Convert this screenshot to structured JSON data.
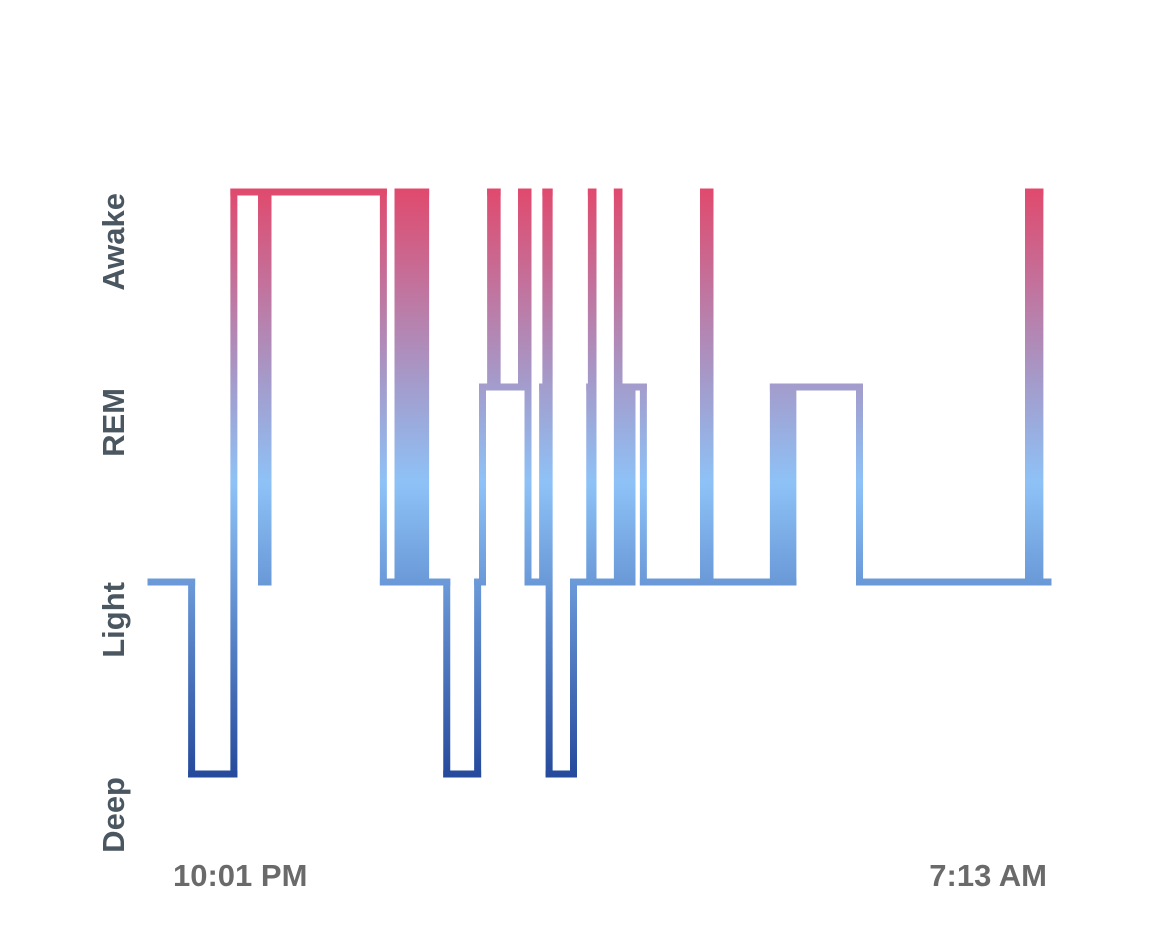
{
  "chart_data": {
    "type": "line",
    "line_style": "step",
    "y_categories": [
      "Deep",
      "Light",
      "REM",
      "Awake"
    ],
    "x_labels": {
      "start": "10:01 PM",
      "end": "7:13 AM"
    },
    "x_range": [
      0,
      552
    ],
    "x_unit": "minutes",
    "colors": {
      "awake": "#e04a6e",
      "rem": "#a39ccc",
      "light": "#8ec2f7",
      "deep": "#264a9c"
    },
    "segments": [
      {
        "t_start": 0,
        "t_end": 25,
        "stage": "Light"
      },
      {
        "t_start": 25,
        "t_end": 51,
        "stage": "Deep"
      },
      {
        "t_start": 51,
        "t_end": 68,
        "stage": "Awake"
      },
      {
        "t_start": 68,
        "t_end": 72,
        "stage": "Light"
      },
      {
        "t_start": 72,
        "t_end": 143,
        "stage": "Awake"
      },
      {
        "t_start": 143,
        "t_end": 152,
        "stage": "Light"
      },
      {
        "t_start": 152,
        "t_end": 153,
        "stage": "Awake"
      },
      {
        "t_start": 153,
        "t_end": 154,
        "stage": "Light"
      },
      {
        "t_start": 154,
        "t_end": 155,
        "stage": "Awake"
      },
      {
        "t_start": 155,
        "t_end": 156,
        "stage": "Light"
      },
      {
        "t_start": 156,
        "t_end": 157,
        "stage": "Awake"
      },
      {
        "t_start": 157,
        "t_end": 158,
        "stage": "Light"
      },
      {
        "t_start": 158,
        "t_end": 159,
        "stage": "Awake"
      },
      {
        "t_start": 159,
        "t_end": 160,
        "stage": "Light"
      },
      {
        "t_start": 160,
        "t_end": 161,
        "stage": "Awake"
      },
      {
        "t_start": 161,
        "t_end": 162,
        "stage": "Light"
      },
      {
        "t_start": 162,
        "t_end": 163,
        "stage": "Awake"
      },
      {
        "t_start": 163,
        "t_end": 164,
        "stage": "Light"
      },
      {
        "t_start": 164,
        "t_end": 165,
        "stage": "Awake"
      },
      {
        "t_start": 165,
        "t_end": 166,
        "stage": "Light"
      },
      {
        "t_start": 166,
        "t_end": 167,
        "stage": "Awake"
      },
      {
        "t_start": 167,
        "t_end": 168,
        "stage": "Light"
      },
      {
        "t_start": 168,
        "t_end": 169,
        "stage": "Awake"
      },
      {
        "t_start": 169,
        "t_end": 182,
        "stage": "Light"
      },
      {
        "t_start": 182,
        "t_end": 201,
        "stage": "Deep"
      },
      {
        "t_start": 201,
        "t_end": 204,
        "stage": "Light"
      },
      {
        "t_start": 204,
        "t_end": 209,
        "stage": "REM"
      },
      {
        "t_start": 209,
        "t_end": 213,
        "stage": "Awake"
      },
      {
        "t_start": 213,
        "t_end": 228,
        "stage": "REM"
      },
      {
        "t_start": 228,
        "t_end": 232,
        "stage": "Awake"
      },
      {
        "t_start": 232,
        "t_end": 241,
        "stage": "Light"
      },
      {
        "t_start": 241,
        "t_end": 243,
        "stage": "REM"
      },
      {
        "t_start": 243,
        "t_end": 245,
        "stage": "Awake"
      },
      {
        "t_start": 245,
        "t_end": 260,
        "stage": "Deep"
      },
      {
        "t_start": 260,
        "t_end": 270,
        "stage": "Light"
      },
      {
        "t_start": 270,
        "t_end": 271,
        "stage": "REM"
      },
      {
        "t_start": 271,
        "t_end": 272,
        "stage": "Awake"
      },
      {
        "t_start": 272,
        "t_end": 287,
        "stage": "Light"
      },
      {
        "t_start": 287,
        "t_end": 288,
        "stage": "Awake"
      },
      {
        "t_start": 288,
        "t_end": 289,
        "stage": "Light"
      },
      {
        "t_start": 289,
        "t_end": 290,
        "stage": "REM"
      },
      {
        "t_start": 290,
        "t_end": 291,
        "stage": "Light"
      },
      {
        "t_start": 291,
        "t_end": 292,
        "stage": "REM"
      },
      {
        "t_start": 292,
        "t_end": 296,
        "stage": "Light"
      },
      {
        "t_start": 296,
        "t_end": 303,
        "stage": "REM"
      },
      {
        "t_start": 303,
        "t_end": 340,
        "stage": "Light"
      },
      {
        "t_start": 340,
        "t_end": 344,
        "stage": "Awake"
      },
      {
        "t_start": 344,
        "t_end": 383,
        "stage": "Light"
      },
      {
        "t_start": 383,
        "t_end": 384,
        "stage": "REM"
      },
      {
        "t_start": 384,
        "t_end": 385,
        "stage": "Light"
      },
      {
        "t_start": 385,
        "t_end": 386,
        "stage": "REM"
      },
      {
        "t_start": 386,
        "t_end": 387,
        "stage": "Light"
      },
      {
        "t_start": 387,
        "t_end": 388,
        "stage": "REM"
      },
      {
        "t_start": 388,
        "t_end": 389,
        "stage": "Light"
      },
      {
        "t_start": 389,
        "t_end": 390,
        "stage": "REM"
      },
      {
        "t_start": 390,
        "t_end": 391,
        "stage": "Light"
      },
      {
        "t_start": 391,
        "t_end": 392,
        "stage": "REM"
      },
      {
        "t_start": 392,
        "t_end": 395,
        "stage": "Light"
      },
      {
        "t_start": 395,
        "t_end": 436,
        "stage": "REM"
      },
      {
        "t_start": 436,
        "t_end": 540,
        "stage": "Light"
      },
      {
        "t_start": 540,
        "t_end": 543,
        "stage": "Awake"
      },
      {
        "t_start": 543,
        "t_end": 545,
        "stage": "Light"
      },
      {
        "t_start": 545,
        "t_end": 547,
        "stage": "Awake"
      },
      {
        "t_start": 547,
        "t_end": 552,
        "stage": "Light"
      }
    ]
  }
}
